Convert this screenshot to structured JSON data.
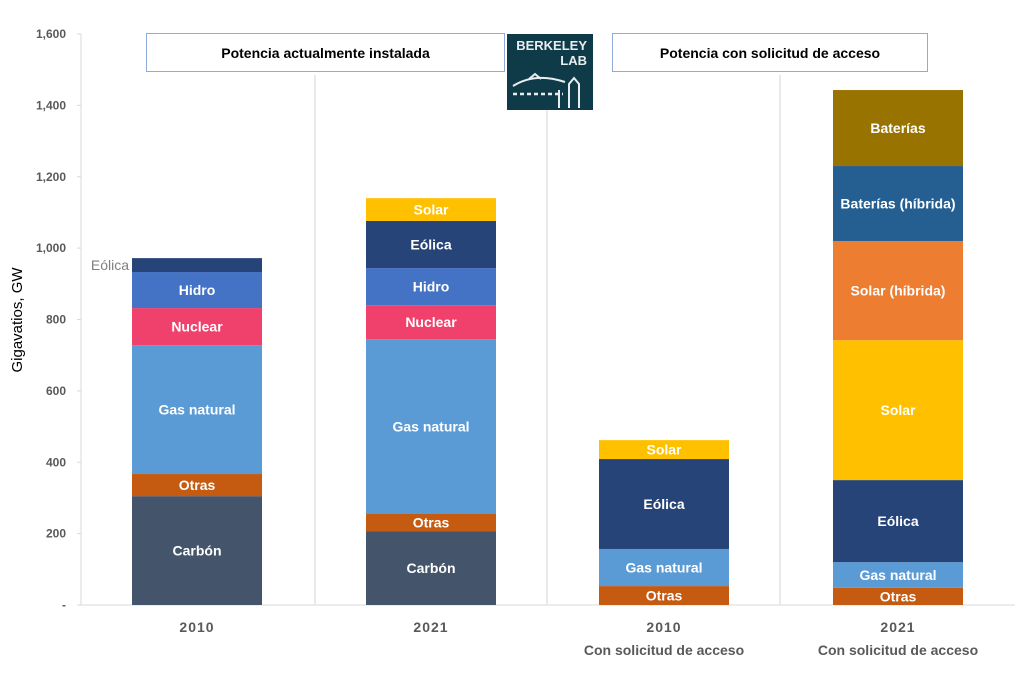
{
  "headers": {
    "left": "Potencia actualmente instalada",
    "right": "Potencia con solicitud de acceso"
  },
  "logo": {
    "line1": "BERKELEY",
    "line2": "LAB"
  },
  "chart_data": {
    "type": "bar",
    "stacked": true,
    "ylabel": "Gigavatios, GW",
    "ylim": [
      0,
      1600
    ],
    "yticks": [
      0,
      200,
      400,
      600,
      800,
      1000,
      1200,
      1400,
      1600
    ],
    "ytick_labels": [
      "-",
      "200",
      "400",
      "600",
      "800",
      "1,000",
      "1,200",
      "1,400",
      "1,600"
    ],
    "grid": false,
    "categories": [
      {
        "label": "2010",
        "sub": ""
      },
      {
        "label": "2021",
        "sub": ""
      },
      {
        "label": "2010",
        "sub": "Con solicitud de acceso"
      },
      {
        "label": "2021",
        "sub": "Con solicitud de acceso"
      }
    ],
    "colors": {
      "Carbón": "#44546a",
      "Otras": "#c55a11",
      "Gas natural": "#5b9bd5",
      "Nuclear": "#f0406c",
      "Hidro": "#4472c4",
      "Eólica": "#264478",
      "Solar": "#ffc000",
      "Solar (híbrida)": "#ed7d31",
      "Baterías (híbrida)": "#255e91",
      "Baterías": "#997300"
    },
    "stacks": [
      [
        {
          "name": "Carbón",
          "value": 305
        },
        {
          "name": "Otras",
          "value": 62
        },
        {
          "name": "Gas natural",
          "value": 361
        },
        {
          "name": "Nuclear",
          "value": 104
        },
        {
          "name": "Hidro",
          "value": 101
        },
        {
          "name": "Eólica",
          "value": 39,
          "label_outside": true
        }
      ],
      [
        {
          "name": "Carbón",
          "value": 207
        },
        {
          "name": "Otras",
          "value": 48
        },
        {
          "name": "Gas natural",
          "value": 490
        },
        {
          "name": "Nuclear",
          "value": 95
        },
        {
          "name": "Hidro",
          "value": 104
        },
        {
          "name": "Eólica",
          "value": 132
        },
        {
          "name": "Solar",
          "value": 64
        }
      ],
      [
        {
          "name": "Otras",
          "value": 53
        },
        {
          "name": "Gas natural",
          "value": 104
        },
        {
          "name": "Eólica",
          "value": 252
        },
        {
          "name": "Solar",
          "value": 53
        }
      ],
      [
        {
          "name": "Otras",
          "value": 48
        },
        {
          "name": "Gas natural",
          "value": 72
        },
        {
          "name": "Eólica",
          "value": 230
        },
        {
          "name": "Solar",
          "value": 392
        },
        {
          "name": "Solar (híbrida)",
          "value": 278
        },
        {
          "name": "Baterías (híbrida)",
          "value": 210
        },
        {
          "name": "Baterías",
          "value": 213
        }
      ]
    ]
  }
}
